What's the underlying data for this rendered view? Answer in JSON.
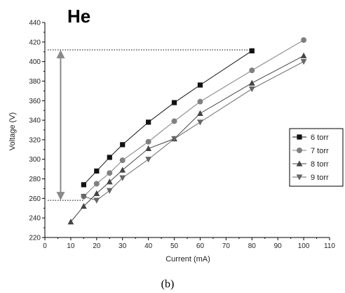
{
  "chart_data": {
    "type": "line",
    "title": "He",
    "caption": "(b)",
    "xlabel": "Current (mA)",
    "ylabel": "Voltage (V)",
    "xlim": [
      0,
      110
    ],
    "ylim": [
      220,
      440
    ],
    "xticks": [
      0,
      10,
      20,
      30,
      40,
      50,
      60,
      70,
      80,
      90,
      100,
      110
    ],
    "yticks": [
      220,
      240,
      260,
      280,
      300,
      320,
      340,
      360,
      380,
      400,
      420,
      440
    ],
    "grid": false,
    "legend_position": "right",
    "series": [
      {
        "name": "6 torr",
        "marker": "square",
        "color": "#111111",
        "x": [
          15,
          20,
          25,
          30,
          40,
          50,
          60,
          80
        ],
        "y": [
          274,
          288,
          302,
          315,
          338,
          358,
          376,
          411
        ]
      },
      {
        "name": "7 torr",
        "marker": "circle",
        "color": "#808080",
        "x": [
          15,
          20,
          25,
          30,
          40,
          50,
          60,
          80,
          100
        ],
        "y": [
          262,
          275,
          286,
          299,
          318,
          339,
          359,
          391,
          422
        ]
      },
      {
        "name": "8 torr",
        "marker": "triangle-up",
        "color": "#444444",
        "x": [
          10,
          15,
          20,
          25,
          30,
          40,
          50,
          60,
          80,
          100
        ],
        "y": [
          236,
          252,
          265,
          277,
          289,
          311,
          321,
          347,
          378,
          406
        ]
      },
      {
        "name": "9 torr",
        "marker": "triangle-down",
        "color": "#666666",
        "x": [
          15,
          20,
          25,
          30,
          40,
          50,
          60,
          80,
          100
        ],
        "y": [
          262,
          258,
          268,
          281,
          300,
          321,
          338,
          372,
          400
        ]
      }
    ],
    "annotations": {
      "range_arrow": {
        "x": 5,
        "y_from": 258,
        "y_to": 412
      },
      "upper_dotted_line": {
        "x_from": 0,
        "x_to": 80,
        "y": 412
      },
      "lower_dotted_line": {
        "x_from": 0,
        "x_to": 15,
        "y": 258
      }
    }
  }
}
